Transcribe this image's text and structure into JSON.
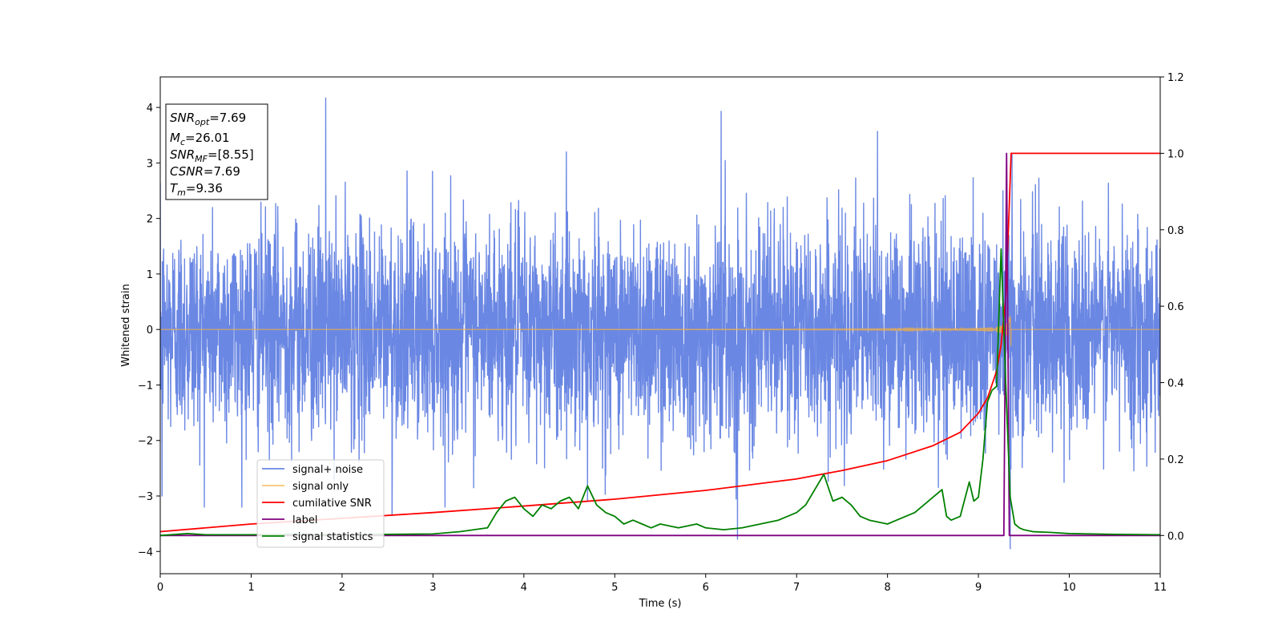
{
  "chart_data": {
    "type": "line",
    "title": "",
    "xlabel": "Time (s)",
    "ylabel": "Whitened strain",
    "xlim": [
      0,
      11
    ],
    "ylim": [
      -4.4,
      4.55
    ],
    "y2lim": [
      -0.1,
      1.2
    ],
    "x_ticks": [
      0,
      1,
      2,
      3,
      4,
      5,
      6,
      7,
      8,
      9,
      10,
      11
    ],
    "y_ticks": [
      -4,
      -3,
      -2,
      -1,
      0,
      1,
      2,
      3,
      4
    ],
    "y2_ticks": [
      "0.0",
      "0.2",
      "0.4",
      "0.6",
      "0.8",
      "1.0",
      "1.2"
    ],
    "grid": false,
    "legend_position": "lower-left",
    "info_box": {
      "lines": [
        {
          "main": "SNR",
          "sub": "opt",
          "rest": "=7.69"
        },
        {
          "main": "M",
          "sub": "c",
          "rest": "=26.01"
        },
        {
          "main": "SNR",
          "sub": "MF",
          "rest": "=[8.55]"
        },
        {
          "main": "CSNR",
          "sub": "",
          "rest": "=7.69"
        },
        {
          "main": "T",
          "sub": "m",
          "rest": "=9.36"
        }
      ]
    },
    "series": [
      {
        "name": "signal+ noise",
        "color": "#6a87e3",
        "axis": "left",
        "style": "noise",
        "noise_std": 0.95,
        "spikes": [
          [
            1.82,
            4.17
          ],
          [
            6.17,
            3.93
          ],
          [
            7.89,
            3.57
          ],
          [
            9.37,
            3.15
          ],
          [
            6.35,
            -3.78
          ],
          [
            9.35,
            -3.95
          ],
          [
            2.55,
            -3.35
          ],
          [
            0.02,
            -3.0
          ],
          [
            4.7,
            -3.1
          ],
          [
            9.27,
            2.5
          ]
        ]
      },
      {
        "name": "signal only",
        "color": "#f5b041",
        "axis": "left",
        "style": "chirp",
        "t_merge": 9.36,
        "peak_amplitude": 1.4
      },
      {
        "name": "cumilative SNR",
        "color": "#ff0000",
        "axis": "right",
        "x": [
          0,
          1,
          2,
          3,
          4,
          5,
          6,
          7,
          7.5,
          8,
          8.5,
          8.8,
          9.0,
          9.1,
          9.2,
          9.25,
          9.3,
          9.33,
          9.36,
          11
        ],
        "y": [
          0.01,
          0.03,
          0.045,
          0.06,
          0.077,
          0.095,
          0.118,
          0.148,
          0.17,
          0.196,
          0.235,
          0.27,
          0.32,
          0.36,
          0.43,
          0.5,
          0.62,
          0.8,
          1.0,
          1.0
        ]
      },
      {
        "name": "label",
        "color": "#800080",
        "axis": "right",
        "x": [
          0,
          9.28,
          9.31,
          9.34,
          11
        ],
        "y": [
          0.0,
          0.0,
          1.0,
          0.0,
          0.0
        ]
      },
      {
        "name": "signal statistics",
        "color": "#008000",
        "axis": "right",
        "x": [
          0,
          0.3,
          0.5,
          1.0,
          1.5,
          2.0,
          2.5,
          3.0,
          3.3,
          3.6,
          3.7,
          3.8,
          3.9,
          4.0,
          4.1,
          4.2,
          4.3,
          4.4,
          4.5,
          4.6,
          4.7,
          4.8,
          4.9,
          5.0,
          5.1,
          5.2,
          5.3,
          5.4,
          5.5,
          5.7,
          5.9,
          6.0,
          6.2,
          6.4,
          6.5,
          6.6,
          6.8,
          7.0,
          7.1,
          7.2,
          7.3,
          7.4,
          7.5,
          7.6,
          7.7,
          7.8,
          7.9,
          8.0,
          8.1,
          8.2,
          8.3,
          8.4,
          8.5,
          8.6,
          8.65,
          8.7,
          8.8,
          8.9,
          8.95,
          9.0,
          9.05,
          9.1,
          9.15,
          9.2,
          9.25,
          9.3,
          9.35,
          9.4,
          9.45,
          9.5,
          9.6,
          9.8,
          10.0,
          10.5,
          11
        ],
        "y": [
          0.0,
          0.005,
          0.002,
          0.002,
          0.003,
          0.002,
          0.003,
          0.004,
          0.01,
          0.02,
          0.06,
          0.09,
          0.1,
          0.07,
          0.05,
          0.08,
          0.07,
          0.09,
          0.1,
          0.07,
          0.13,
          0.08,
          0.06,
          0.05,
          0.03,
          0.04,
          0.03,
          0.02,
          0.03,
          0.02,
          0.03,
          0.02,
          0.015,
          0.02,
          0.025,
          0.03,
          0.04,
          0.06,
          0.08,
          0.12,
          0.16,
          0.09,
          0.1,
          0.08,
          0.05,
          0.04,
          0.035,
          0.03,
          0.04,
          0.05,
          0.06,
          0.08,
          0.1,
          0.12,
          0.05,
          0.04,
          0.05,
          0.14,
          0.09,
          0.1,
          0.2,
          0.35,
          0.38,
          0.39,
          0.75,
          0.4,
          0.1,
          0.03,
          0.02,
          0.015,
          0.01,
          0.008,
          0.005,
          0.003,
          0.002
        ]
      }
    ]
  }
}
